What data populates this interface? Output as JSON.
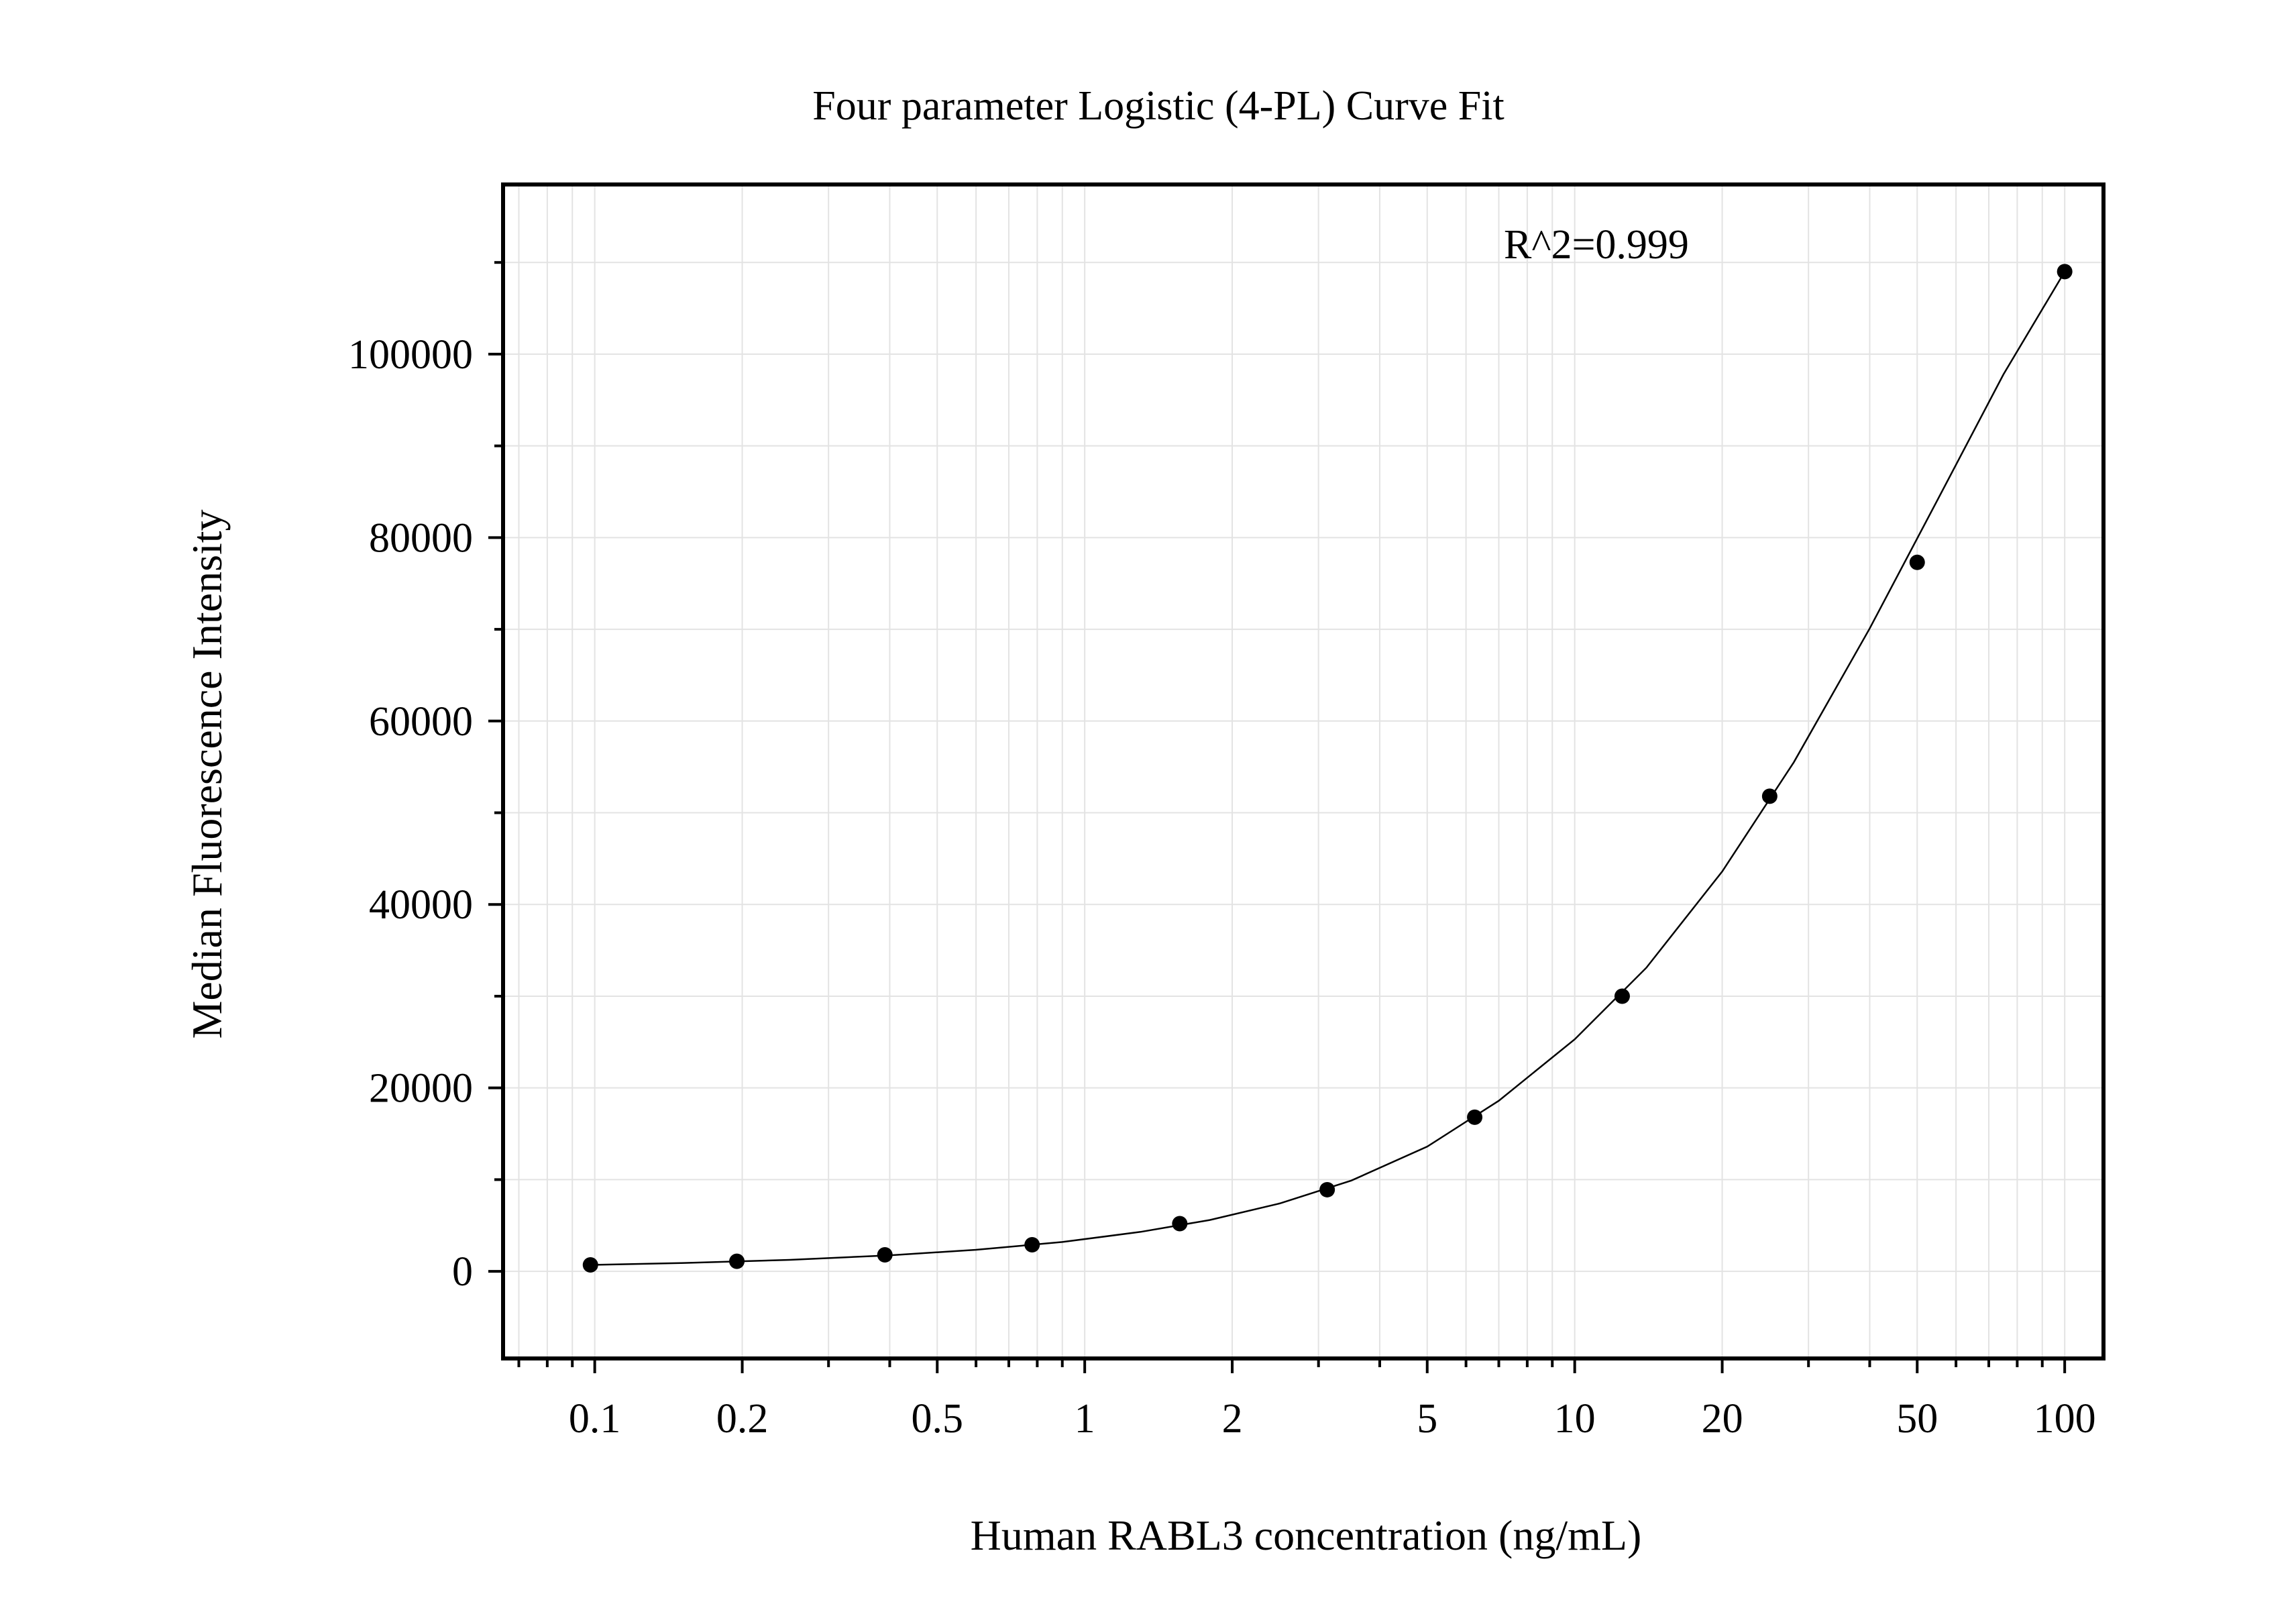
{
  "chart_data": {
    "type": "scatter",
    "title": "Four parameter Logistic (4-PL) Curve Fit",
    "xlabel": "Human RABL3 concentration (ng/mL)",
    "ylabel": "Median Fluorescence Intensity",
    "annotation": "R^2=0.999",
    "x_scale": "log",
    "xlim": [
      0.065,
      120
    ],
    "ylim": [
      -9500,
      118500
    ],
    "x_ticks": [
      0.1,
      0.2,
      0.5,
      1,
      2,
      5,
      10,
      20,
      50,
      100
    ],
    "x_tick_labels": [
      "0.1",
      "0.2",
      "0.5",
      "1",
      "2",
      "5",
      "10",
      "20",
      "50",
      "100"
    ],
    "y_ticks": [
      0,
      20000,
      40000,
      60000,
      80000,
      100000
    ],
    "y_tick_labels": [
      "0",
      "20000",
      "40000",
      "60000",
      "80000",
      "100000"
    ],
    "grid": true,
    "series": [
      {
        "x": [
          0.098,
          0.195,
          0.391,
          0.781,
          1.563,
          3.125,
          6.25,
          12.5,
          25,
          50,
          100
        ],
        "y": [
          700,
          1100,
          1800,
          2900,
          5200,
          8900,
          16800,
          30000,
          51800,
          77300,
          109000
        ]
      }
    ],
    "fit_curve": {
      "x": [
        0.098,
        0.15,
        0.25,
        0.4,
        0.6,
        0.9,
        1.3,
        1.8,
        2.5,
        3.5,
        5,
        7,
        10,
        14,
        20,
        28,
        40,
        55,
        75,
        100
      ],
      "y": [
        700,
        900,
        1250,
        1750,
        2350,
        3200,
        4300,
        5600,
        7400,
        9900,
        13600,
        18600,
        25300,
        33100,
        43600,
        55500,
        70100,
        84100,
        97800,
        109000
      ]
    },
    "colors": {
      "marker": "#000000",
      "curve": "#000000",
      "grid": "#e3e3e3",
      "frame": "#000000"
    }
  }
}
